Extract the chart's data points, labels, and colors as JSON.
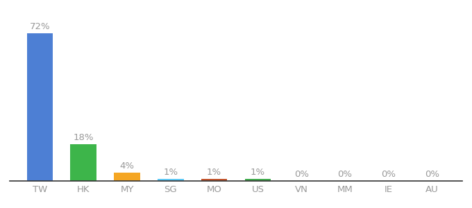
{
  "categories": [
    "TW",
    "HK",
    "MY",
    "SG",
    "MO",
    "US",
    "VN",
    "MM",
    "IE",
    "AU"
  ],
  "values": [
    72,
    18,
    4,
    1,
    1,
    1,
    0,
    0,
    0,
    0
  ],
  "labels": [
    "72%",
    "18%",
    "4%",
    "1%",
    "1%",
    "1%",
    "0%",
    "0%",
    "0%",
    "0%"
  ],
  "bar_colors": [
    "#4d7fd4",
    "#3db54a",
    "#f5a623",
    "#5bc8f5",
    "#c0522a",
    "#3daa4a",
    "#cccccc",
    "#cccccc",
    "#cccccc",
    "#cccccc"
  ],
  "background_color": "#ffffff",
  "ylim": [
    0,
    80
  ],
  "label_fontsize": 9.5,
  "tick_fontsize": 9.5,
  "label_color": "#999999",
  "tick_color": "#999999",
  "spine_color": "#333333"
}
